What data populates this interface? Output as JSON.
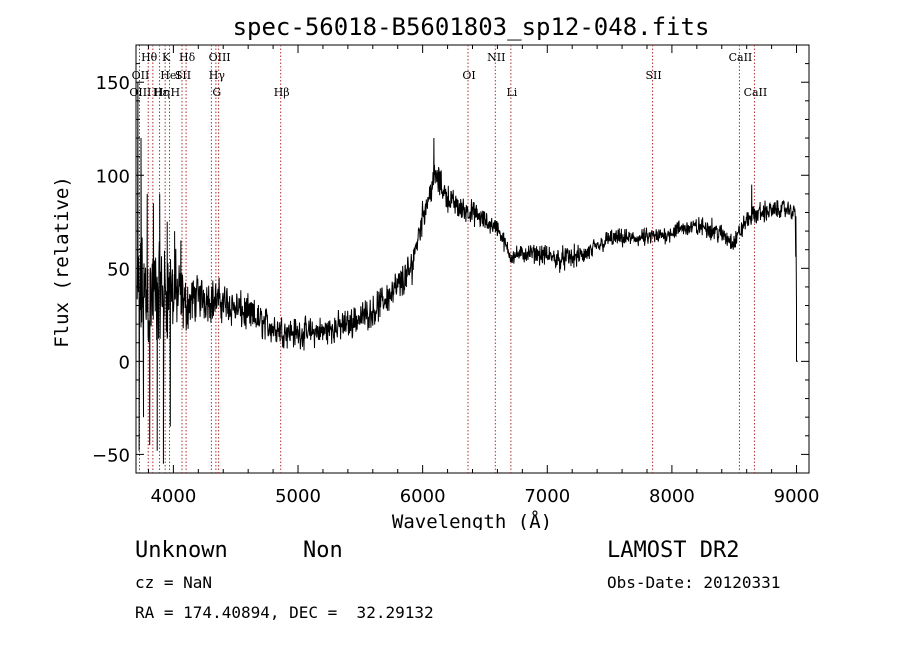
{
  "chart_data": {
    "type": "line",
    "title": "spec-56018-B5601803_sp12-048.fits",
    "xlabel": "Wavelength (Å)",
    "ylabel": "Flux (relative)",
    "xlim": [
      3700,
      9100
    ],
    "ylim": [
      -60,
      170
    ],
    "x_ticks": [
      {
        "value": 4000,
        "label": "4000"
      },
      {
        "value": 5000,
        "label": "5000"
      },
      {
        "value": 6000,
        "label": "6000"
      },
      {
        "value": 7000,
        "label": "7000"
      },
      {
        "value": 8000,
        "label": "8000"
      },
      {
        "value": 9000,
        "label": "9000"
      }
    ],
    "y_ticks": [
      {
        "value": -50,
        "label": "−50"
      },
      {
        "value": 0,
        "label": "0"
      },
      {
        "value": 50,
        "label": "50"
      },
      {
        "value": 100,
        "label": "100"
      },
      {
        "value": 150,
        "label": "150"
      }
    ],
    "line_color": "#000000",
    "marker_color": "#b03030",
    "spectrum_anchors": [
      {
        "x": 3710,
        "y": 35,
        "noise": 40
      },
      {
        "x": 3800,
        "y": 35,
        "noise": 40
      },
      {
        "x": 4000,
        "y": 38,
        "noise": 30
      },
      {
        "x": 4100,
        "y": 30,
        "noise": 18
      },
      {
        "x": 4200,
        "y": 35,
        "noise": 15
      },
      {
        "x": 4400,
        "y": 32,
        "noise": 14
      },
      {
        "x": 4600,
        "y": 25,
        "noise": 12
      },
      {
        "x": 4800,
        "y": 18,
        "noise": 11
      },
      {
        "x": 5000,
        "y": 15,
        "noise": 10
      },
      {
        "x": 5200,
        "y": 16,
        "noise": 10
      },
      {
        "x": 5400,
        "y": 20,
        "noise": 10
      },
      {
        "x": 5600,
        "y": 27,
        "noise": 10
      },
      {
        "x": 5800,
        "y": 40,
        "noise": 12
      },
      {
        "x": 5900,
        "y": 48,
        "noise": 12
      },
      {
        "x": 6000,
        "y": 78,
        "noise": 10
      },
      {
        "x": 6100,
        "y": 100,
        "noise": 10
      },
      {
        "x": 6200,
        "y": 88,
        "noise": 9
      },
      {
        "x": 6300,
        "y": 82,
        "noise": 8
      },
      {
        "x": 6400,
        "y": 80,
        "noise": 8
      },
      {
        "x": 6500,
        "y": 75,
        "noise": 7
      },
      {
        "x": 6600,
        "y": 72,
        "noise": 6
      },
      {
        "x": 6700,
        "y": 57,
        "noise": 6
      },
      {
        "x": 6900,
        "y": 58,
        "noise": 6
      },
      {
        "x": 7100,
        "y": 55,
        "noise": 8
      },
      {
        "x": 7300,
        "y": 57,
        "noise": 7
      },
      {
        "x": 7500,
        "y": 66,
        "noise": 6
      },
      {
        "x": 7700,
        "y": 66,
        "noise": 6
      },
      {
        "x": 7900,
        "y": 67,
        "noise": 6
      },
      {
        "x": 8100,
        "y": 72,
        "noise": 6
      },
      {
        "x": 8300,
        "y": 72,
        "noise": 7
      },
      {
        "x": 8500,
        "y": 64,
        "noise": 7
      },
      {
        "x": 8600,
        "y": 76,
        "noise": 6
      },
      {
        "x": 8700,
        "y": 80,
        "noise": 7
      },
      {
        "x": 8900,
        "y": 82,
        "noise": 6
      },
      {
        "x": 8990,
        "y": 80,
        "noise": 5
      },
      {
        "x": 9000,
        "y": 0,
        "noise": 0
      }
    ],
    "spectrum_spikes": [
      {
        "x": 3715,
        "y": 150
      },
      {
        "x": 3725,
        "y": -48
      },
      {
        "x": 3740,
        "y": 120
      },
      {
        "x": 3760,
        "y": -30
      },
      {
        "x": 3790,
        "y": 90
      },
      {
        "x": 3810,
        "y": -45
      },
      {
        "x": 3840,
        "y": 85
      },
      {
        "x": 3870,
        "y": -48
      },
      {
        "x": 3890,
        "y": 90
      },
      {
        "x": 3920,
        "y": -55
      },
      {
        "x": 3950,
        "y": 75
      },
      {
        "x": 3975,
        "y": -35
      },
      {
        "x": 4010,
        "y": 70
      },
      {
        "x": 4060,
        "y": 65
      },
      {
        "x": 6090,
        "y": 120
      },
      {
        "x": 8640,
        "y": 95
      }
    ],
    "line_markers": [
      {
        "label": "Hθ",
        "x": 3798,
        "row": 0,
        "side": "left"
      },
      {
        "label": "OII",
        "x": 3728,
        "row": 1,
        "side": "left"
      },
      {
        "label": "OIII",
        "x": 3727,
        "row": 2,
        "side": "left"
      },
      {
        "label": "K",
        "x": 3934,
        "row": 0,
        "side": "left"
      },
      {
        "label": "Hε",
        "x": 3889,
        "row": 2,
        "side": "left"
      },
      {
        "label": "HeI",
        "x": 3969,
        "row": 1,
        "side": "left"
      },
      {
        "label": "SII",
        "x": 4069,
        "row": 1,
        "side": "left"
      },
      {
        "label": "Hη",
        "x": 3835,
        "row": 2,
        "side": "right"
      },
      {
        "label": "H",
        "x": 3969,
        "row": 2,
        "side": "right"
      },
      {
        "label": "Hδ",
        "x": 4102,
        "row": 0,
        "side": "left"
      },
      {
        "label": "OIII",
        "x": 4363,
        "row": 0,
        "side": "left"
      },
      {
        "label": "Hγ",
        "x": 4341,
        "row": 1,
        "side": "left"
      },
      {
        "label": "G",
        "x": 4305,
        "row": 2,
        "side": "right"
      },
      {
        "label": "Hβ",
        "x": 4861,
        "row": 2,
        "side": "left"
      },
      {
        "label": "NII",
        "x": 6583,
        "row": 0,
        "side": "left"
      },
      {
        "label": "OI",
        "x": 6364,
        "row": 1,
        "side": "left"
      },
      {
        "label": "Li",
        "x": 6708,
        "row": 2,
        "side": "left"
      },
      {
        "label": "SII",
        "x": 7845,
        "row": 1,
        "side": "left"
      },
      {
        "label": "CaII",
        "x": 8542,
        "row": 0,
        "side": "left"
      },
      {
        "label": "CaII",
        "x": 8662,
        "row": 2,
        "side": "left"
      }
    ]
  },
  "info": {
    "object_class": "Unknown",
    "subclass": "Non",
    "release": "LAMOST DR2",
    "redshift": "cz = NaN",
    "obs_date": "Obs-Date: 20120331",
    "coords": "RA = 174.40894, DEC =  32.29132"
  }
}
